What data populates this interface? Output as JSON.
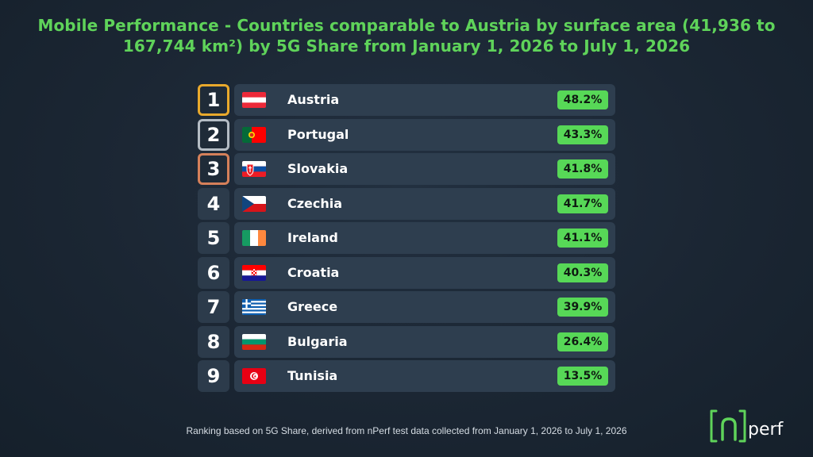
{
  "title": "Mobile Performance - Countries comparable to Austria by surface area (41,936 to 167,744 km²) by 5G Share from January 1, 2026 to July 1, 2026",
  "footnote": "Ranking based on 5G Share, derived from nPerf test data collected from January 1, 2026 to July 1, 2026",
  "logo": {
    "text": "nperf",
    "color": "#5fd35a"
  },
  "colors": {
    "accent_green": "#57d857",
    "title_green": "#5fd35a",
    "gold": "#e9a92c",
    "silver": "#b4bcc4",
    "bronze": "#d5805a",
    "row_bg": "#2e3e4f"
  },
  "chart_data": {
    "type": "table",
    "title": "Mobile Performance - Countries comparable to Austria by surface area (41,936 to 167,744 km²) by 5G Share from January 1, 2026 to July 1, 2026",
    "metric": "5G Share",
    "rows": [
      {
        "rank": "1",
        "country": "Austria",
        "value": 48.2,
        "value_label": "48.2%",
        "flag": "austria-flag",
        "medal": "gold"
      },
      {
        "rank": "2",
        "country": "Portugal",
        "value": 43.3,
        "value_label": "43.3%",
        "flag": "portugal-flag",
        "medal": "silver"
      },
      {
        "rank": "3",
        "country": "Slovakia",
        "value": 41.8,
        "value_label": "41.8%",
        "flag": "slovakia-flag",
        "medal": "bronze"
      },
      {
        "rank": "4",
        "country": "Czechia",
        "value": 41.7,
        "value_label": "41.7%",
        "flag": "czechia-flag",
        "medal": "none"
      },
      {
        "rank": "5",
        "country": "Ireland",
        "value": 41.1,
        "value_label": "41.1%",
        "flag": "ireland-flag",
        "medal": "none"
      },
      {
        "rank": "6",
        "country": "Croatia",
        "value": 40.3,
        "value_label": "40.3%",
        "flag": "croatia-flag",
        "medal": "none"
      },
      {
        "rank": "7",
        "country": "Greece",
        "value": 39.9,
        "value_label": "39.9%",
        "flag": "greece-flag",
        "medal": "none"
      },
      {
        "rank": "8",
        "country": "Bulgaria",
        "value": 26.4,
        "value_label": "26.4%",
        "flag": "bulgaria-flag",
        "medal": "none"
      },
      {
        "rank": "9",
        "country": "Tunisia",
        "value": 13.5,
        "value_label": "13.5%",
        "flag": "tunisia-flag",
        "medal": "none"
      }
    ]
  }
}
